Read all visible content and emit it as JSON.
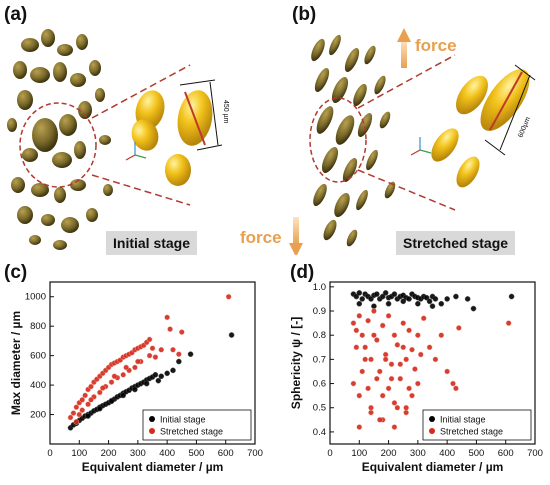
{
  "panels": {
    "a": {
      "letter": "(a)",
      "stage": "Initial stage",
      "scale": "450 µm",
      "force": "force"
    },
    "b": {
      "letter": "(b)",
      "stage": "Stretched stage",
      "scale": "600µm",
      "force": "force"
    },
    "c": {
      "letter": "(c)"
    },
    "d": {
      "letter": "(d)"
    }
  },
  "colors": {
    "ellipsoid": "#7a6a2a",
    "zoom": "#f2c21b",
    "force": "#e8a050",
    "dashed": "#b03a2e",
    "initial": "#000000",
    "stretched": "#d42a1a"
  },
  "chart_data": [
    {
      "type": "scatter",
      "id": "c",
      "xlabel": "Equivalent diameter / µm",
      "ylabel": "Max diameter / µm",
      "xlim": [
        0,
        700
      ],
      "ylim": [
        0,
        1100
      ],
      "xticks": [
        "0",
        "100",
        "200",
        "300",
        "400",
        "500",
        "600",
        "700"
      ],
      "yticks": [
        "200",
        "400",
        "600",
        "800",
        "1000"
      ],
      "legend": "bottom-right",
      "series": [
        {
          "name": "Initial stage",
          "color": "#000000",
          "x": [
            70,
            80,
            90,
            100,
            110,
            120,
            130,
            140,
            150,
            160,
            170,
            180,
            190,
            200,
            210,
            220,
            230,
            240,
            250,
            260,
            270,
            280,
            290,
            300,
            310,
            320,
            330,
            340,
            350,
            360,
            370,
            380,
            400,
            420,
            440,
            480,
            620,
            90,
            130,
            170,
            210,
            250,
            290,
            330
          ],
          "y": [
            110,
            130,
            150,
            160,
            175,
            190,
            200,
            210,
            225,
            235,
            250,
            260,
            270,
            280,
            295,
            305,
            320,
            330,
            345,
            355,
            365,
            380,
            390,
            400,
            410,
            420,
            435,
            445,
            455,
            470,
            430,
            460,
            480,
            500,
            560,
            610,
            740,
            140,
            190,
            240,
            290,
            330,
            370,
            410
          ]
        },
        {
          "name": "Stretched stage",
          "color": "#d42a1a",
          "x": [
            70,
            80,
            90,
            100,
            110,
            120,
            130,
            140,
            150,
            160,
            170,
            180,
            190,
            200,
            210,
            220,
            230,
            240,
            250,
            260,
            270,
            280,
            290,
            300,
            310,
            320,
            330,
            340,
            350,
            360,
            380,
            400,
            410,
            420,
            440,
            90,
            110,
            130,
            150,
            170,
            190,
            210,
            230,
            250,
            270,
            290,
            310,
            100,
            140,
            180,
            220,
            260,
            300,
            340,
            450,
            610
          ],
          "y": [
            180,
            210,
            250,
            280,
            300,
            330,
            370,
            390,
            420,
            440,
            460,
            480,
            500,
            520,
            540,
            550,
            560,
            570,
            590,
            600,
            610,
            620,
            640,
            650,
            660,
            670,
            690,
            710,
            650,
            590,
            640,
            860,
            780,
            640,
            610,
            150,
            230,
            270,
            320,
            350,
            390,
            420,
            450,
            470,
            500,
            520,
            560,
            200,
            300,
            380,
            460,
            520,
            560,
            600,
            760,
            1000
          ]
        }
      ]
    },
    {
      "type": "scatter",
      "id": "d",
      "xlabel": "Equivalent diameter / µm",
      "ylabel": "Sphericity ψ / [-]",
      "xlim": [
        0,
        700
      ],
      "ylim": [
        0.35,
        1.02
      ],
      "xticks": [
        "0",
        "100",
        "200",
        "300",
        "400",
        "500",
        "600",
        "700"
      ],
      "yticks": [
        "0.4",
        "0.5",
        "0.6",
        "0.7",
        "0.8",
        "0.9",
        "1.0"
      ],
      "legend": "bottom-right",
      "series": [
        {
          "name": "Initial stage",
          "color": "#000000",
          "x": [
            80,
            90,
            100,
            110,
            120,
            130,
            140,
            150,
            160,
            170,
            180,
            190,
            200,
            210,
            220,
            230,
            240,
            250,
            260,
            270,
            280,
            290,
            300,
            310,
            320,
            330,
            340,
            350,
            360,
            380,
            400,
            430,
            470,
            490,
            620,
            100,
            150,
            200,
            250,
            300,
            350
          ],
          "y": [
            0.97,
            0.96,
            0.975,
            0.95,
            0.97,
            0.96,
            0.95,
            0.965,
            0.97,
            0.95,
            0.96,
            0.975,
            0.955,
            0.96,
            0.97,
            0.95,
            0.96,
            0.965,
            0.955,
            0.95,
            0.97,
            0.96,
            0.955,
            0.95,
            0.96,
            0.955,
            0.94,
            0.96,
            0.95,
            0.93,
            0.95,
            0.96,
            0.95,
            0.91,
            0.96,
            0.93,
            0.92,
            0.93,
            0.94,
            0.93,
            0.92
          ]
        },
        {
          "name": "Stretched stage",
          "color": "#d42a1a",
          "x": [
            80,
            90,
            100,
            110,
            120,
            130,
            140,
            150,
            160,
            170,
            180,
            190,
            200,
            210,
            220,
            230,
            240,
            250,
            260,
            270,
            280,
            290,
            300,
            310,
            320,
            340,
            360,
            380,
            400,
            420,
            440,
            80,
            100,
            120,
            140,
            160,
            180,
            200,
            220,
            240,
            260,
            280,
            300,
            90,
            110,
            130,
            150,
            170,
            190,
            210,
            230,
            250,
            270,
            100,
            140,
            180,
            220,
            260,
            430,
            610
          ],
          "y": [
            0.85,
            0.82,
            0.88,
            0.8,
            0.75,
            0.86,
            0.7,
            0.9,
            0.78,
            0.65,
            0.84,
            0.72,
            0.88,
            0.68,
            0.8,
            0.76,
            0.62,
            0.85,
            0.7,
            0.82,
            0.74,
            0.66,
            0.8,
            0.72,
            0.87,
            0.75,
            0.7,
            0.8,
            0.65,
            0.6,
            0.83,
            0.6,
            0.55,
            0.7,
            0.5,
            0.62,
            0.45,
            0.58,
            0.52,
            0.68,
            0.48,
            0.55,
            0.6,
            0.75,
            0.65,
            0.58,
            0.8,
            0.45,
            0.7,
            0.62,
            0.5,
            0.75,
            0.58,
            0.42,
            0.48,
            0.55,
            0.42,
            0.5,
            0.58,
            0.85
          ]
        }
      ]
    }
  ]
}
